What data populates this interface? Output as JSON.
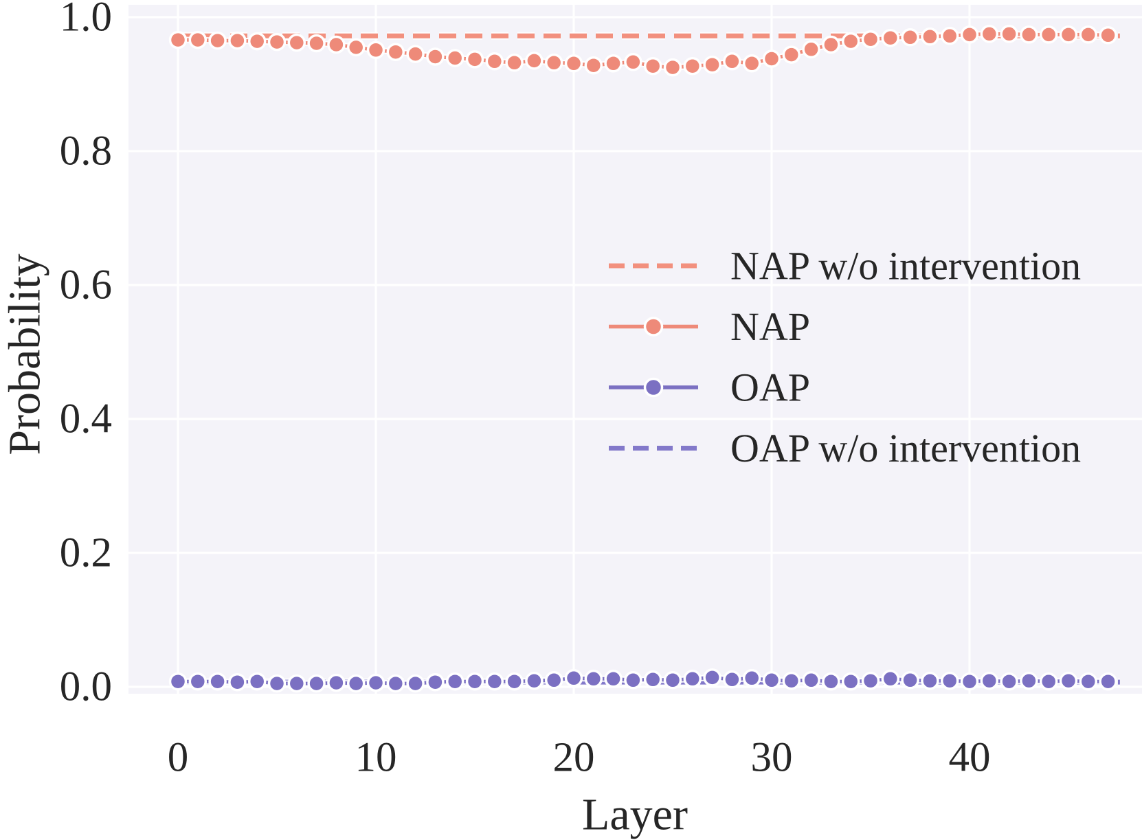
{
  "figure": {
    "background": "#ffffff",
    "plot_background": "#f4f3f9",
    "grid_color": "#ffffff",
    "text_color": "#262626"
  },
  "chart_data": {
    "type": "line",
    "title": "",
    "xlabel": "Layer",
    "ylabel": "Probability",
    "xlim": [
      -2.5,
      48.7
    ],
    "ylim": [
      -0.01,
      1.018
    ],
    "grid": true,
    "legend_position": "center-right, no frame",
    "xticks": [
      "0",
      "10",
      "20",
      "30",
      "40"
    ],
    "xtick_values": [
      0,
      10,
      20,
      30,
      40
    ],
    "yticks": [
      "0.0",
      "0.2",
      "0.4",
      "0.6",
      "0.8",
      "1.0"
    ],
    "ytick_values": [
      0.0,
      0.2,
      0.4,
      0.6,
      0.8,
      1.0
    ],
    "x": [
      0,
      1,
      2,
      3,
      4,
      5,
      6,
      7,
      8,
      9,
      10,
      11,
      12,
      13,
      14,
      15,
      16,
      17,
      18,
      19,
      20,
      21,
      22,
      23,
      24,
      25,
      26,
      27,
      28,
      29,
      30,
      31,
      32,
      33,
      34,
      35,
      36,
      37,
      38,
      39,
      40,
      41,
      42,
      43,
      44,
      45,
      46,
      47
    ],
    "series": [
      {
        "name": "NAP w/o intervention",
        "color": "#f2907e",
        "style": "dashed",
        "markers": false,
        "constant_value": 0.972
      },
      {
        "name": "NAP",
        "color": "#ee8a79",
        "style": "solid",
        "markers": true,
        "values": [
          0.966,
          0.966,
          0.965,
          0.965,
          0.964,
          0.963,
          0.962,
          0.961,
          0.959,
          0.955,
          0.951,
          0.948,
          0.945,
          0.941,
          0.939,
          0.937,
          0.934,
          0.932,
          0.935,
          0.932,
          0.931,
          0.928,
          0.931,
          0.933,
          0.927,
          0.925,
          0.927,
          0.929,
          0.934,
          0.931,
          0.938,
          0.944,
          0.952,
          0.959,
          0.964,
          0.967,
          0.969,
          0.97,
          0.971,
          0.972,
          0.974,
          0.975,
          0.975,
          0.974,
          0.974,
          0.974,
          0.974,
          0.973
        ]
      },
      {
        "name": "OAP",
        "color": "#7b70c2",
        "style": "solid",
        "markers": true,
        "values": [
          0.008,
          0.008,
          0.008,
          0.007,
          0.008,
          0.005,
          0.005,
          0.005,
          0.006,
          0.005,
          0.006,
          0.005,
          0.005,
          0.007,
          0.008,
          0.008,
          0.008,
          0.008,
          0.009,
          0.01,
          0.013,
          0.012,
          0.012,
          0.01,
          0.011,
          0.01,
          0.012,
          0.014,
          0.011,
          0.013,
          0.01,
          0.009,
          0.01,
          0.008,
          0.008,
          0.009,
          0.012,
          0.01,
          0.009,
          0.009,
          0.008,
          0.009,
          0.008,
          0.009,
          0.008,
          0.009,
          0.008,
          0.008
        ]
      },
      {
        "name": "OAP w/o intervention",
        "color": "#8379ca",
        "style": "dashed",
        "markers": false,
        "constant_value": 0.007
      }
    ]
  }
}
